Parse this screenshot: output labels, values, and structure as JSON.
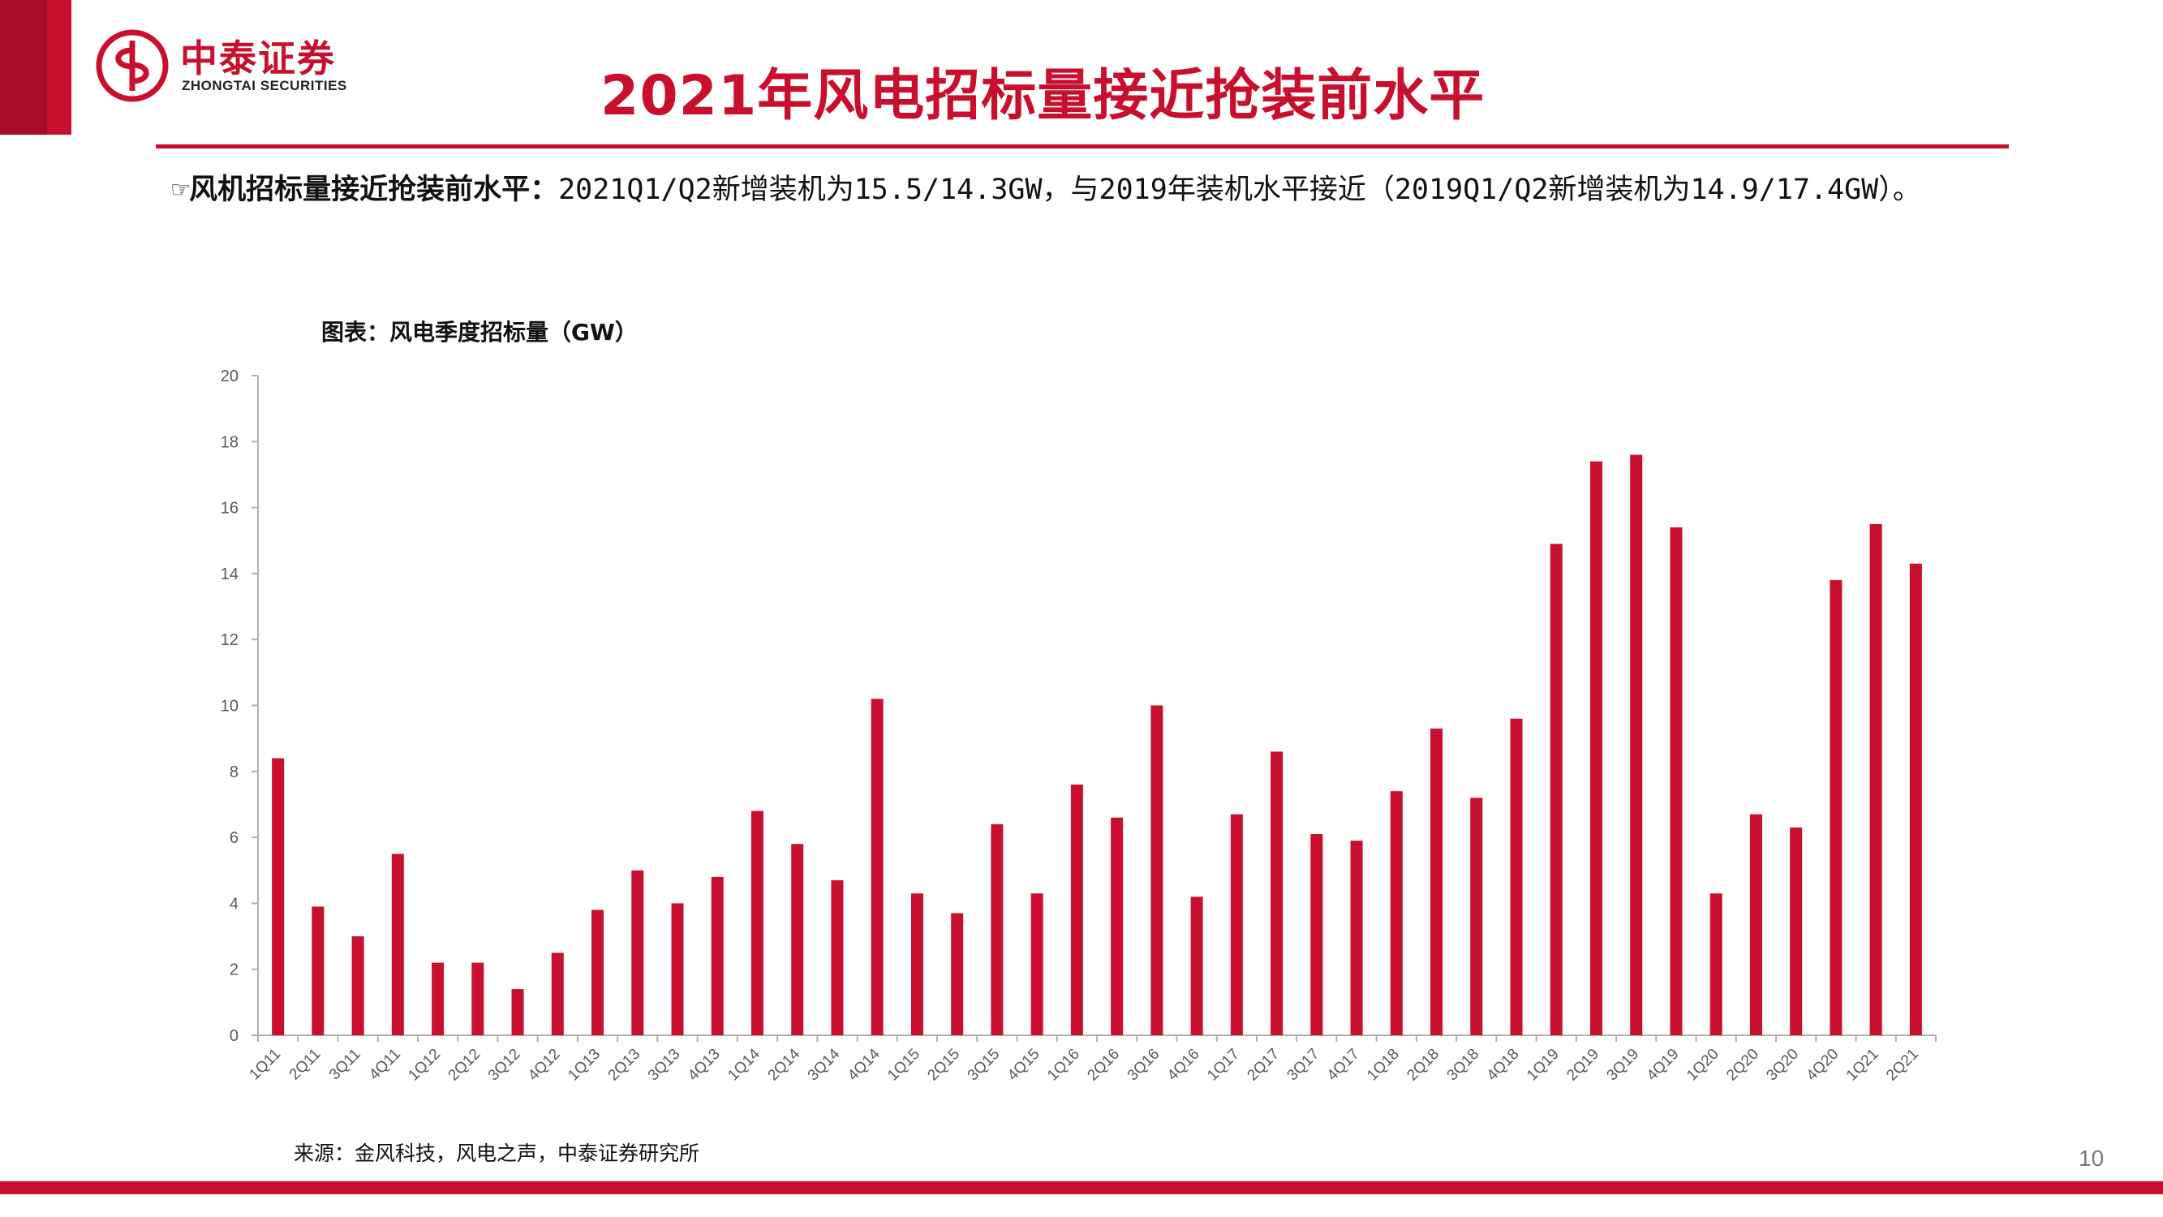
{
  "header": {
    "logo_cn": "中泰证券",
    "logo_en": "ZHONGTAI SECURITIES",
    "title": "2021年风电招标量接近抢装前水平"
  },
  "bullet": {
    "icon": "☞",
    "lead": "风机招标量接近抢装前水平：",
    "text": "2021Q1/Q2新增装机为15.5/14.3GW，与2019年装机水平接近（2019Q1/Q2新增装机为14.9/17.4GW）。"
  },
  "chart_caption": "图表：风电季度招标量（GW）",
  "source": "来源：金风科技，风电之声，中泰证券研究所",
  "page_number": "10",
  "colors": {
    "accent": "#c8102e",
    "bar": "#c8102e",
    "axis": "#b0b0b0",
    "tick_text": "#595959"
  },
  "chart_data": {
    "type": "bar",
    "title": "",
    "xlabel": "",
    "ylabel": "",
    "ylim": [
      0,
      20
    ],
    "yticks": [
      0,
      2,
      4,
      6,
      8,
      10,
      12,
      14,
      16,
      18,
      20
    ],
    "grid": false,
    "legend": "none",
    "categories": [
      "1Q11",
      "2Q11",
      "3Q11",
      "4Q11",
      "1Q12",
      "2Q12",
      "3Q12",
      "4Q12",
      "1Q13",
      "2Q13",
      "3Q13",
      "4Q13",
      "1Q14",
      "2Q14",
      "3Q14",
      "4Q14",
      "1Q15",
      "2Q15",
      "3Q15",
      "4Q15",
      "1Q16",
      "2Q16",
      "3Q16",
      "4Q16",
      "1Q17",
      "2Q17",
      "3Q17",
      "4Q17",
      "1Q18",
      "2Q18",
      "3Q18",
      "4Q18",
      "1Q19",
      "2Q19",
      "3Q19",
      "4Q19",
      "1Q20",
      "2Q20",
      "3Q20",
      "4Q20",
      "1Q21",
      "2Q21"
    ],
    "values": [
      8.4,
      3.9,
      3.0,
      5.5,
      2.2,
      2.2,
      1.4,
      2.5,
      3.8,
      5.0,
      4.0,
      4.8,
      6.8,
      5.8,
      4.7,
      10.2,
      4.3,
      3.7,
      6.4,
      4.3,
      7.6,
      6.6,
      10.0,
      4.2,
      6.7,
      8.6,
      6.1,
      5.9,
      7.4,
      9.3,
      7.2,
      9.6,
      14.9,
      17.4,
      17.6,
      15.4,
      4.3,
      6.7,
      6.3,
      13.8,
      15.5,
      14.3
    ]
  }
}
